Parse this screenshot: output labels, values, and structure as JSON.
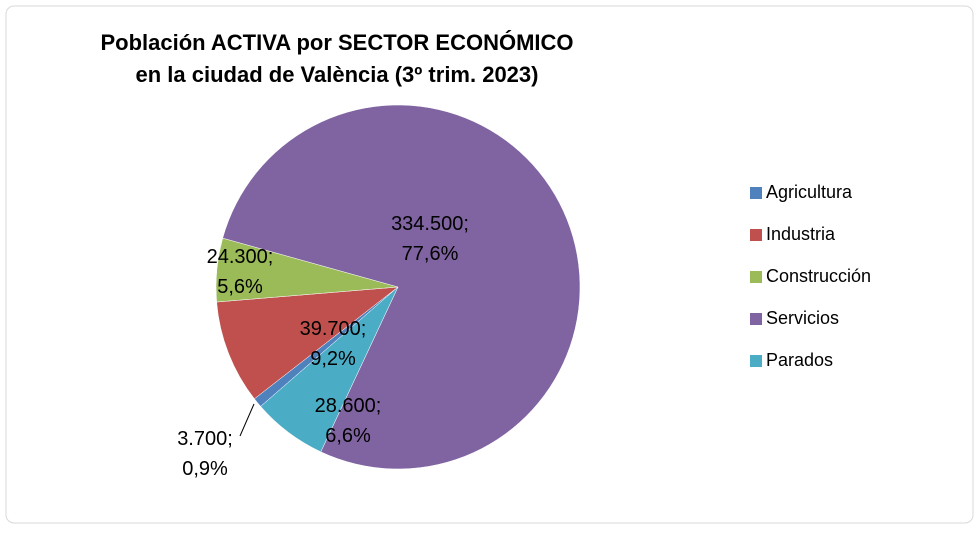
{
  "chart_data": {
    "type": "pie",
    "title": [
      "Población ACTIVA por SECTOR ECONÓMICO",
      "en la ciudad de València (3º trim. 2023)"
    ],
    "categories": [
      "Agricultura",
      "Industria",
      "Construcción",
      "Servicios",
      "Parados"
    ],
    "values": [
      3700,
      39700,
      24300,
      334500,
      28600
    ],
    "value_labels": [
      "3.700; 0,9%",
      "39.700; 9,2%",
      "24.300; 5,6%",
      "334.500; 77,6%",
      "28.600; 6,6%"
    ],
    "colors": [
      "#4f81bd",
      "#c0504d",
      "#9bbb59",
      "#8064a2",
      "#4bacc6"
    ],
    "legend": "right"
  }
}
